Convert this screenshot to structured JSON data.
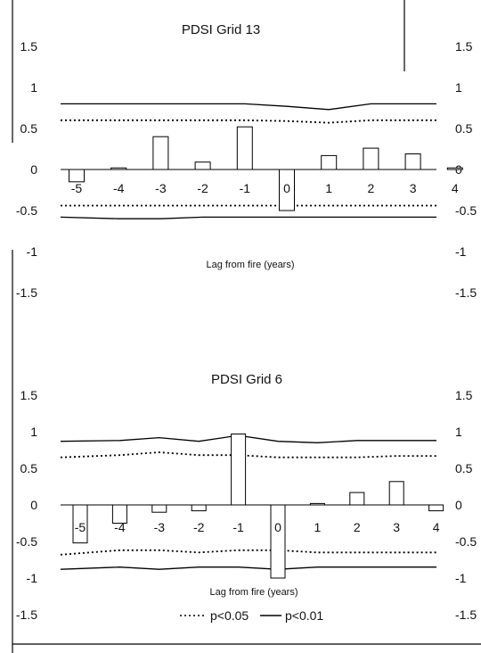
{
  "legend": {
    "p05_label": "p<0.05",
    "p01_label": "p<0.01"
  },
  "chart_data": [
    {
      "type": "bar",
      "title": "PDSI Grid 13",
      "xlabel": "Lag from fire (years)",
      "ylabel": "",
      "ylim": [
        -1.5,
        1.5
      ],
      "left_ticks": [
        "1.5",
        "1",
        "0.5",
        "0",
        "-0.5",
        "-1",
        "-1.5"
      ],
      "right_ticks": [
        "1.5",
        "1",
        "0.5",
        "0",
        "-0.5",
        "-1",
        "-1.5"
      ],
      "categories": [
        "-5",
        "-4",
        "-3",
        "-2",
        "-1",
        "0",
        "1",
        "2",
        "3",
        "4"
      ],
      "values": [
        -0.15,
        0.02,
        0.4,
        0.09,
        0.52,
        -0.5,
        0.17,
        0.26,
        0.19,
        0.02
      ],
      "p05_upper": [
        0.6,
        0.6,
        0.6,
        0.6,
        0.6,
        0.59,
        0.57,
        0.6,
        0.6,
        0.6
      ],
      "p05_lower": [
        -0.44,
        -0.44,
        -0.44,
        -0.44,
        -0.44,
        -0.44,
        -0.44,
        -0.44,
        -0.44,
        -0.44
      ],
      "p01_upper": [
        0.8,
        0.8,
        0.8,
        0.8,
        0.8,
        0.77,
        0.73,
        0.8,
        0.8,
        0.8
      ],
      "p01_lower": [
        -0.58,
        -0.6,
        -0.6,
        -0.58,
        -0.58,
        -0.58,
        -0.58,
        -0.58,
        -0.58,
        -0.58
      ]
    },
    {
      "type": "bar",
      "title": "PDSI Grid 6",
      "xlabel": "Lag from fire (years)",
      "ylabel": "",
      "ylim": [
        -1.5,
        1.5
      ],
      "left_ticks": [
        "1.5",
        "1",
        "0.5",
        "0",
        "-0.5",
        "-1",
        "-1.5"
      ],
      "right_ticks": [
        "1.5",
        "1",
        "0.5",
        "0",
        "-0.5",
        "-1",
        "-1.5"
      ],
      "categories": [
        "-5",
        "-4",
        "-3",
        "-2",
        "-1",
        "0",
        "1",
        "2",
        "3",
        "4"
      ],
      "values": [
        -0.52,
        -0.25,
        -0.1,
        -0.08,
        0.97,
        -1.0,
        0.02,
        0.17,
        0.32,
        -0.08
      ],
      "p05_upper": [
        0.65,
        0.68,
        0.72,
        0.68,
        0.68,
        0.65,
        0.65,
        0.65,
        0.67,
        0.67
      ],
      "p05_lower": [
        -0.68,
        -0.62,
        -0.62,
        -0.65,
        -0.62,
        -0.62,
        -0.65,
        -0.65,
        -0.65,
        -0.65
      ],
      "p01_upper": [
        0.87,
        0.88,
        0.92,
        0.87,
        0.95,
        0.87,
        0.85,
        0.88,
        0.88,
        0.88
      ],
      "p01_lower": [
        -0.88,
        -0.85,
        -0.88,
        -0.85,
        -0.85,
        -0.88,
        -0.85,
        -0.85,
        -0.85,
        -0.85
      ]
    }
  ]
}
